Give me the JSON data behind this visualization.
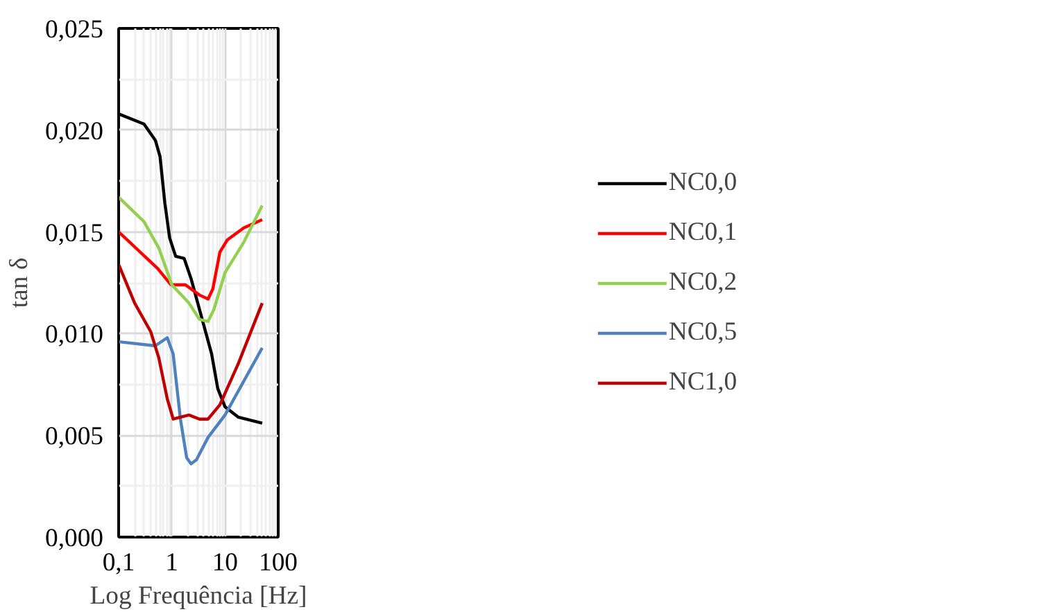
{
  "chart_data": {
    "type": "line",
    "xlabel": "Log Frequência [Hz]",
    "ylabel": "tan δ",
    "log": "x",
    "grid": true,
    "legend": "right",
    "line_style": "solid",
    "marker": "none",
    "xlim": [
      0.1,
      100
    ],
    "xticks": [
      {
        "value": 0.1,
        "label": "0,1"
      },
      1,
      10,
      100
    ],
    "ylim": [
      0,
      0.025
    ],
    "yticks": [
      {
        "value": 0,
        "label": "0,000"
      },
      {
        "value": 0.005,
        "label": "0,005"
      },
      {
        "value": 0.01,
        "label": "0,010"
      },
      {
        "value": 0.015,
        "label": "0,015"
      },
      {
        "value": 0.02,
        "label": "0,020"
      },
      {
        "value": 0.025,
        "label": "0,025"
      }
    ],
    "series": [
      {
        "name": "NC0,0",
        "color": "#000000",
        "x": [
          0.1,
          0.3,
          0.49,
          0.6,
          0.74,
          0.91,
          1.18,
          1.7,
          2.3,
          3.3,
          5.6,
          7.3,
          10,
          17.6,
          50
        ],
        "values": [
          0.0208,
          0.0203,
          0.0195,
          0.0187,
          0.0164,
          0.0147,
          0.0138,
          0.0137,
          0.0127,
          0.0112,
          0.009,
          0.0073,
          0.0064,
          0.0059,
          0.0056
        ]
      },
      {
        "name": "NC0,1",
        "color": "#ff0000",
        "x": [
          0.1,
          0.54,
          0.96,
          1.8,
          3.3,
          4.8,
          5.9,
          8,
          11,
          22.6,
          50
        ],
        "values": [
          0.015,
          0.0132,
          0.0124,
          0.0124,
          0.0119,
          0.0117,
          0.0122,
          0.014,
          0.0146,
          0.0152,
          0.0156
        ]
      },
      {
        "name": "NC0,2",
        "color": "#92d050",
        "x": [
          0.1,
          0.3,
          0.57,
          1.0,
          2.1,
          3.3,
          4.8,
          6.2,
          10,
          22.6,
          50
        ],
        "values": [
          0.0167,
          0.0155,
          0.0142,
          0.0124,
          0.0115,
          0.0107,
          0.0106,
          0.0112,
          0.013,
          0.0145,
          0.0163
        ]
      },
      {
        "name": "NC0,5",
        "color": "#4f81bd",
        "x": [
          0.1,
          0.49,
          0.82,
          1.06,
          1.45,
          1.9,
          2.3,
          2.9,
          4.8,
          10,
          50
        ],
        "values": [
          0.0096,
          0.0094,
          0.0098,
          0.009,
          0.0058,
          0.0039,
          0.0036,
          0.0038,
          0.0049,
          0.006,
          0.0093
        ]
      },
      {
        "name": "NC1,0",
        "color": "#c00000",
        "x": [
          0.1,
          0.2,
          0.4,
          0.57,
          0.82,
          1.06,
          2.1,
          3.3,
          4.8,
          8,
          17.6,
          50
        ],
        "values": [
          0.0134,
          0.0115,
          0.0101,
          0.0088,
          0.0068,
          0.0058,
          0.006,
          0.0058,
          0.0058,
          0.0065,
          0.0085,
          0.0115
        ]
      }
    ]
  }
}
